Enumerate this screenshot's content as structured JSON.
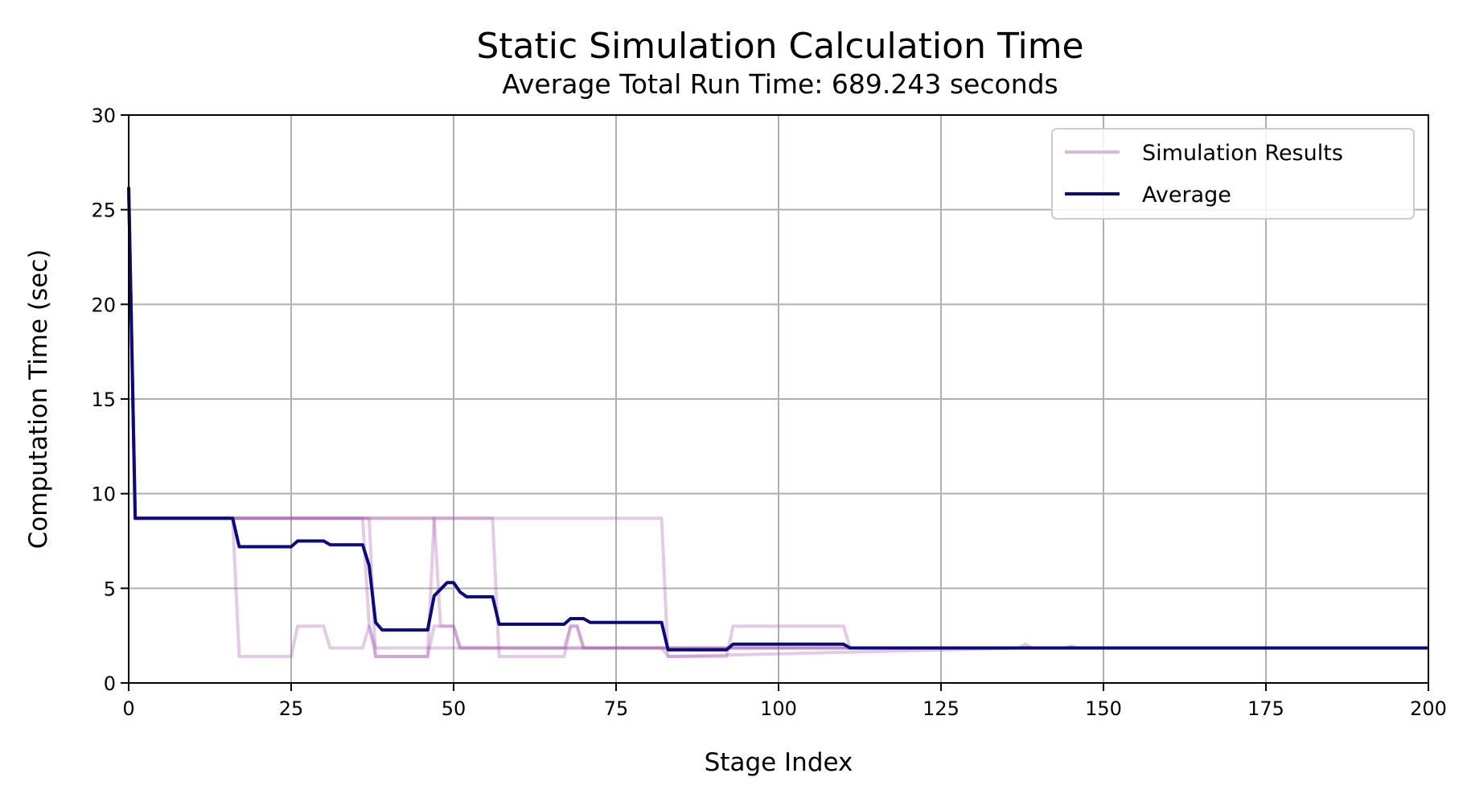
{
  "chart_data": {
    "type": "line",
    "title": "Static Simulation Calculation Time",
    "subtitle": "Average Total Run Time: 689.243 seconds",
    "xlabel": "Stage Index",
    "ylabel": "Computation Time (sec)",
    "xlim": [
      0,
      200
    ],
    "ylim": [
      0,
      30
    ],
    "xticks": [
      0,
      25,
      50,
      75,
      100,
      125,
      150,
      175,
      200
    ],
    "yticks": [
      0,
      5,
      10,
      15,
      20,
      25,
      30
    ],
    "grid": true,
    "legend": {
      "placement": "top-right",
      "entries": [
        "Simulation Results",
        "Average"
      ]
    },
    "colors": {
      "simulation_results": "#dcb7dc",
      "overlap": "#9b3f9b",
      "average": "#0a0a78",
      "grid": "#b0b0b0"
    },
    "series": [
      {
        "name": "Average",
        "x": [
          0,
          1,
          16,
          17,
          22,
          25,
          26,
          30,
          31,
          36,
          37,
          38,
          39,
          46,
          47,
          49,
          50,
          51,
          52,
          56,
          57,
          67,
          68,
          70,
          71,
          82,
          83,
          92,
          93,
          110,
          111,
          200
        ],
        "y": [
          26.2,
          8.7,
          8.7,
          7.2,
          7.2,
          7.2,
          7.5,
          7.5,
          7.3,
          7.3,
          6.2,
          3.2,
          2.8,
          2.8,
          4.6,
          5.3,
          5.3,
          4.8,
          4.55,
          4.55,
          3.1,
          3.1,
          3.4,
          3.4,
          3.2,
          3.2,
          1.75,
          1.75,
          2.05,
          2.05,
          1.85,
          1.85
        ]
      }
    ],
    "simulation_runs": [
      {
        "x": [
          0,
          1,
          16,
          17,
          25,
          26,
          30,
          31,
          36,
          37,
          38,
          46,
          47,
          48,
          49,
          50,
          51,
          56,
          57,
          67,
          68,
          69,
          70,
          82,
          83,
          92,
          93,
          110,
          111,
          200
        ],
        "y": [
          26.2,
          8.7,
          8.7,
          1.4,
          1.4,
          3.0,
          3.0,
          1.85,
          1.85,
          3.0,
          1.4,
          1.4,
          3.0,
          3.0,
          3.0,
          3.0,
          1.85,
          1.85,
          1.85,
          1.85,
          3.0,
          3.0,
          1.85,
          1.85,
          1.4,
          1.4,
          3.0,
          3.0,
          1.85,
          1.85
        ]
      },
      {
        "x": [
          0,
          1,
          36,
          37,
          38,
          46,
          47,
          56,
          57,
          67,
          68,
          69,
          70,
          82,
          83,
          92,
          93,
          110,
          111,
          200
        ],
        "y": [
          26.2,
          8.7,
          8.7,
          8.7,
          1.4,
          1.4,
          8.7,
          8.7,
          1.4,
          1.4,
          3.0,
          3.0,
          1.85,
          1.85,
          1.85,
          1.85,
          1.85,
          1.85,
          1.85,
          1.85
        ]
      },
      {
        "x": [
          0,
          1,
          37,
          38,
          46,
          47,
          48,
          49,
          50,
          51,
          82,
          83,
          200
        ],
        "y": [
          26.2,
          8.7,
          8.7,
          8.7,
          8.7,
          8.7,
          3.0,
          3.0,
          3.0,
          1.85,
          1.85,
          1.85,
          1.85
        ]
      },
      {
        "x": [
          0,
          1,
          56,
          57,
          82,
          83,
          137,
          138,
          139,
          144,
          145,
          146,
          200
        ],
        "y": [
          26.2,
          8.7,
          8.7,
          8.7,
          8.7,
          1.4,
          1.85,
          2.05,
          1.85,
          1.85,
          1.95,
          1.85,
          1.85
        ]
      },
      {
        "x": [
          0,
          1,
          36,
          37,
          38,
          200
        ],
        "y": [
          26.2,
          8.7,
          8.7,
          3.0,
          1.85,
          1.85
        ]
      }
    ]
  }
}
